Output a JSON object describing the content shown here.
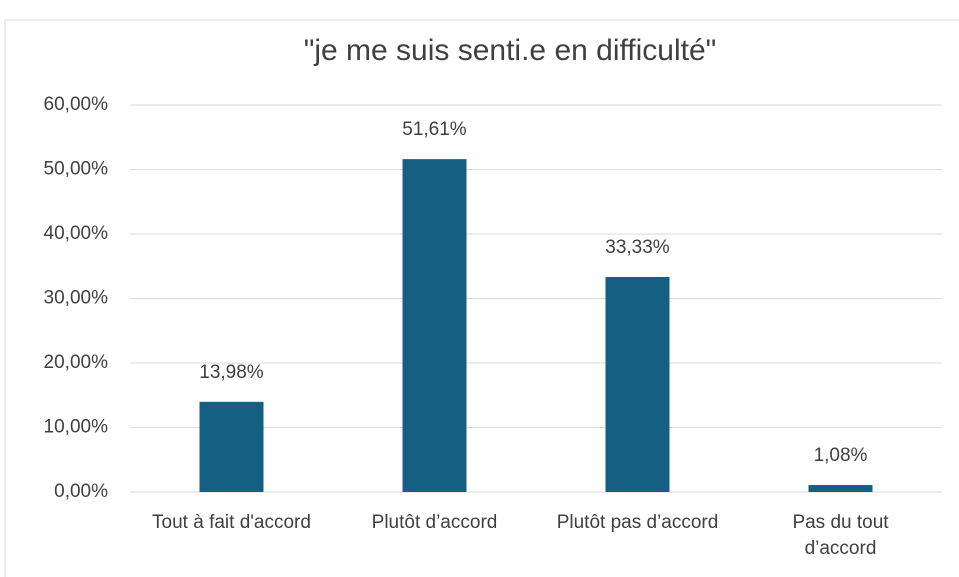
{
  "chart_data": {
    "type": "bar",
    "title": "\"je me suis senti.e en difficulté\"",
    "categories": [
      "Tout à fait d'accord",
      "Plutôt d’accord",
      "Plutôt pas d’accord",
      "Pas du tout d’accord"
    ],
    "values": [
      13.98,
      51.61,
      33.33,
      1.08
    ],
    "value_labels": [
      "13,98%",
      "51,61%",
      "33,33%",
      "1,08%"
    ],
    "color": "#156082",
    "ylim": [
      0,
      60
    ],
    "yticks": [
      {
        "value": 0,
        "label": "0,00%"
      },
      {
        "value": 10,
        "label": "10,00%"
      },
      {
        "value": 20,
        "label": "20,00%"
      },
      {
        "value": 30,
        "label": "30,00%"
      },
      {
        "value": 40,
        "label": "40,00%"
      },
      {
        "value": 50,
        "label": "50,00%"
      },
      {
        "value": 60,
        "label": "60,00%"
      }
    ],
    "grid": true
  }
}
